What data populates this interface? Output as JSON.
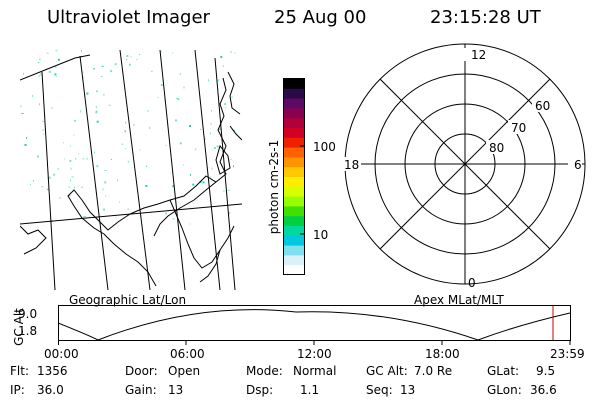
{
  "header": {
    "instrument": "Ultraviolet Imager",
    "date": "25 Aug 00",
    "time": "23:15:28 UT"
  },
  "colorbar": {
    "unit_label": "photon cm-2s-1",
    "ticks": [
      "100",
      "10"
    ],
    "colors": [
      "#000000",
      "#2a0a48",
      "#5c0a64",
      "#8a0050",
      "#b0003c",
      "#d20024",
      "#ee2000",
      "#ff6000",
      "#ff9400",
      "#ffc800",
      "#ffee00",
      "#d8ff00",
      "#98ff00",
      "#40e000",
      "#00d040",
      "#00d8a0",
      "#00c8e0",
      "#80e0f0",
      "#d8f2f8",
      "#ffffff"
    ]
  },
  "geo_label": "Geographic Lat/Lon",
  "polar": {
    "label": "Apex MLat/MLT",
    "mlt_labels": {
      "top": "12",
      "bottom": "0",
      "left": "18",
      "right": "6"
    },
    "lat_labels": [
      "60",
      "70",
      "80"
    ]
  },
  "altitude_plot": {
    "ylabel": "GC Alt",
    "y_ticks": [
      "9.0",
      "1.8"
    ],
    "x_ticks": [
      "00:00",
      "06:00",
      "12:00",
      "18:00",
      "23:59"
    ],
    "marker_color": "#cc0000"
  },
  "footer": {
    "flt_label": "Flt:",
    "flt_value": "1356",
    "ip_label": "IP:",
    "ip_value": "36.0",
    "door_label": "Door:",
    "door_value": "Open",
    "gain_label": "Gain:",
    "gain_value": "13",
    "mode_label": "Mode:",
    "mode_value": "Normal",
    "dsp_label": "Dsp:",
    "dsp_value": "1.1",
    "gcalt_label": "GC Alt:",
    "gcalt_value": "7.0 Re",
    "seq_label": "Seq:",
    "seq_value": "13",
    "glat_label": "GLat:",
    "glat_value": "9.5",
    "glon_label": "GLon:",
    "glon_value": "36.6"
  }
}
